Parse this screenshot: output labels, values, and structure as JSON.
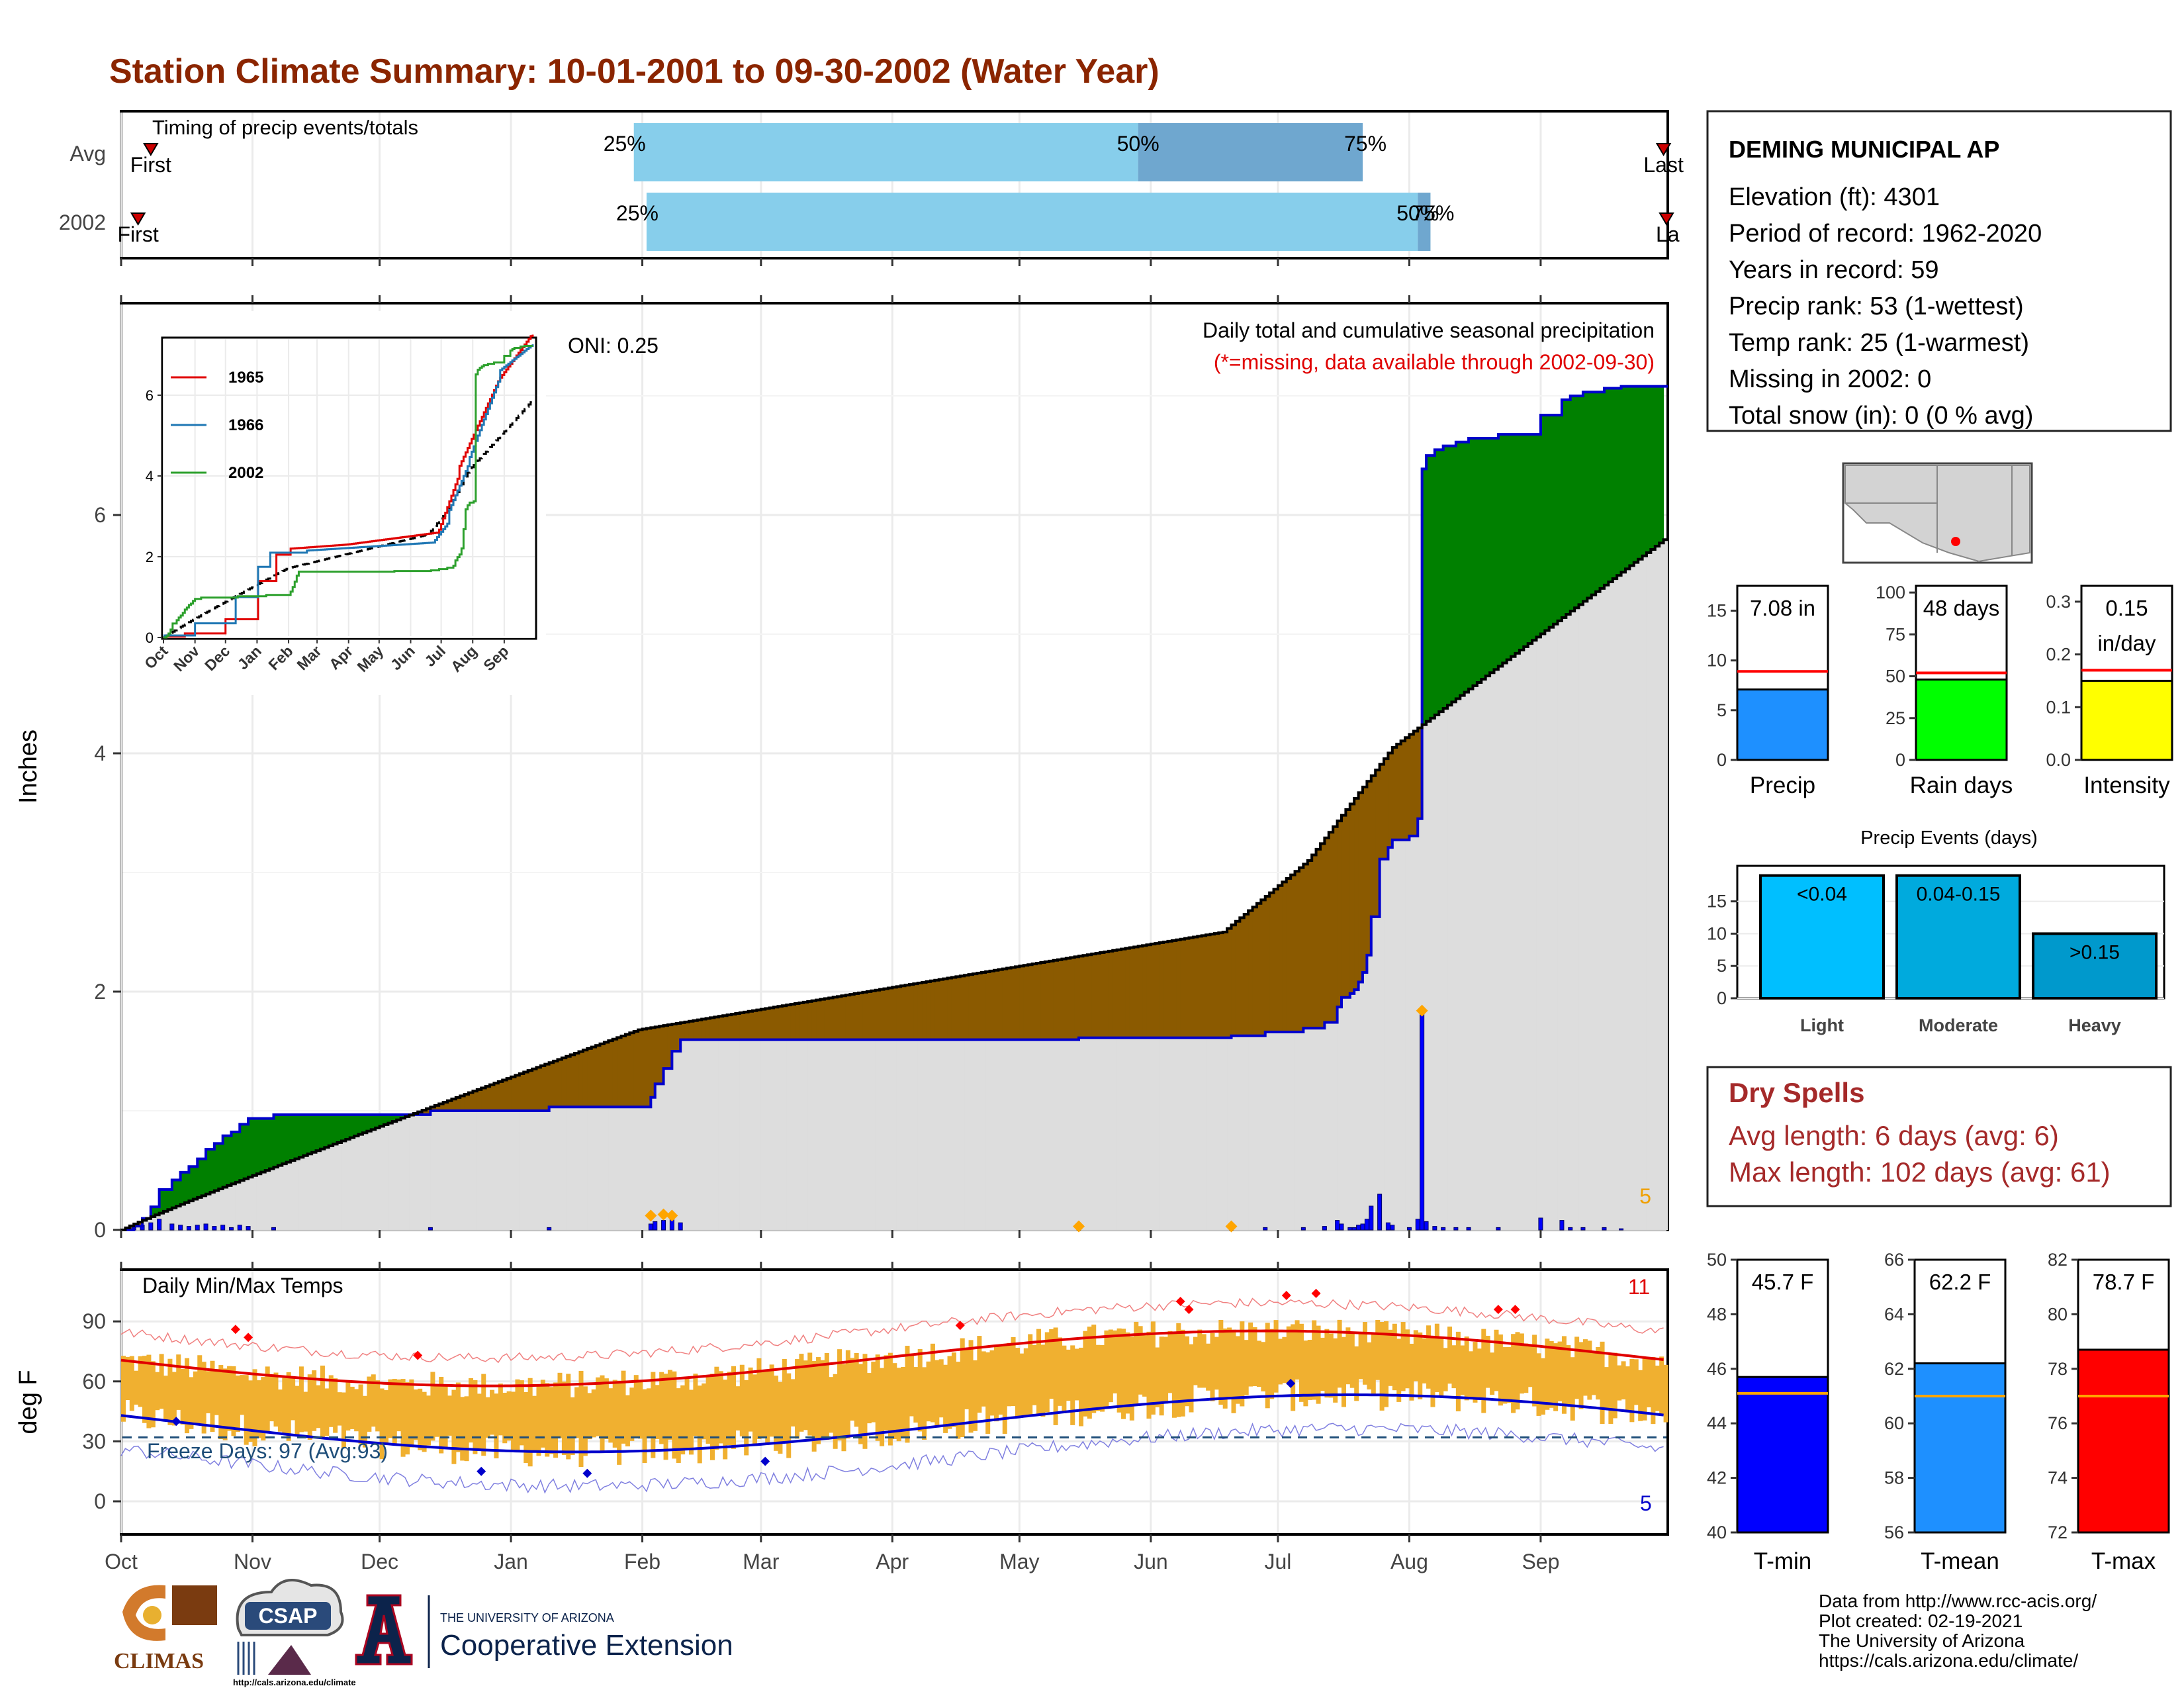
{
  "title": "Station Climate Summary: 10-01-2001 to 09-30-2002 (Water Year)",
  "colors": {
    "title": "#8B2500",
    "precip_bar": "#0000FF",
    "green": "#008000",
    "brown": "#8B5A00",
    "gray_fill": "#DDDDDD",
    "orange": "#F0B030",
    "tmax": "#E00000",
    "tmin": "#0000CC"
  },
  "timing": {
    "label": "Timing of precip events/totals",
    "rows": [
      {
        "name": "Avg",
        "first_label": "First",
        "last_label": "Last",
        "q25": "25%",
        "q50": "50%",
        "q75": "75%",
        "first_doy": 7,
        "p25_doy": 121,
        "p50_doy": 240,
        "p75_doy": 293,
        "last_doy": 364
      },
      {
        "name": "2002",
        "first_label": "First",
        "last_label": "La",
        "q25": "25%",
        "q50": "50%",
        "q75": "75%",
        "first_doy": 4,
        "p25_doy": 124,
        "p50_doy": 306,
        "p75_doy": 309,
        "last_doy": 367
      }
    ]
  },
  "main": {
    "ylabel": "Inches",
    "yticks": [
      "0",
      "2",
      "4",
      "6"
    ],
    "oni": "ONI: 0.25",
    "note1": "Daily total and cumulative seasonal precipitation",
    "note2": "(*=missing, data available through 2002-09-30)",
    "corner_value": "5"
  },
  "inset": {
    "legend": [
      "1965",
      "1966",
      "2002"
    ],
    "yticks": [
      "0",
      "2",
      "4",
      "6"
    ],
    "xticks": [
      "Oct",
      "Nov",
      "Dec",
      "Jan",
      "Feb",
      "Mar",
      "Apr",
      "May",
      "Jun",
      "Jul",
      "Aug",
      "Sep"
    ]
  },
  "temp": {
    "ylabel": "deg F",
    "title": "Daily Min/Max Temps",
    "yticks": [
      "0",
      "30",
      "60",
      "90"
    ],
    "freeze": "Freeze Days: 97 (Avg:93)",
    "max_count": "11",
    "min_count": "5"
  },
  "months": [
    "Oct",
    "Nov",
    "Dec",
    "Jan",
    "Feb",
    "Mar",
    "Apr",
    "May",
    "Jun",
    "Jul",
    "Aug",
    "Sep"
  ],
  "station": {
    "name": "DEMING MUNICIPAL AP",
    "lines": [
      "Elevation (ft): 4301",
      "Period of record: 1962-2020",
      "Years in record: 59",
      "Precip rank: 53 (1-wettest)",
      "Temp rank: 25 (1-warmest)",
      "Missing in 2002: 0",
      "Total snow (in): 0 (0 % avg)"
    ]
  },
  "gauges": [
    {
      "name": "Precip",
      "value_label": "7.08 in",
      "value": 7.08,
      "avg": 8.9,
      "max": 17.5,
      "ticks": [
        "0",
        "5",
        "10",
        "15"
      ],
      "tickvals": [
        0,
        5,
        10,
        15
      ],
      "color": "#1E90FF"
    },
    {
      "name": "Rain days",
      "value_label": "48 days",
      "value": 48,
      "avg": 52,
      "max": 104,
      "ticks": [
        "0",
        "25",
        "50",
        "75",
        "100"
      ],
      "tickvals": [
        0,
        25,
        50,
        75,
        100
      ],
      "color": "#00FF00"
    },
    {
      "name": "Intensity",
      "value_label": "0.15",
      "value_label2": "in/day",
      "value": 0.15,
      "avg": 0.17,
      "max": 0.33,
      "ticks": [
        "0.0",
        "0.1",
        "0.2",
        "0.3"
      ],
      "tickvals": [
        0,
        0.1,
        0.2,
        0.3
      ],
      "color": "#FFFF00"
    }
  ],
  "events": {
    "title": "Precip Events (days)",
    "categories": [
      "Light",
      "Moderate",
      "Heavy"
    ],
    "labels": [
      "<0.04",
      "0.04-0.15",
      ">0.15"
    ],
    "values": [
      19,
      19,
      10
    ],
    "yticks": [
      "0",
      "5",
      "10",
      "15"
    ],
    "colors": [
      "#00BFFF",
      "#00AADD",
      "#0099CC"
    ]
  },
  "dry_spells": {
    "title": "Dry Spells",
    "avg_line": "Avg length: 6 days (avg: 6)",
    "max_line": "Max length: 102 days (avg: 61)"
  },
  "temp_gauges": [
    {
      "name": "T-min",
      "value_label": "45.7 F",
      "value": 45.7,
      "avg": 45.1,
      "min": 40,
      "max": 50,
      "ticks": [
        "40",
        "42",
        "44",
        "46",
        "48",
        "50"
      ],
      "tickvals": [
        40,
        42,
        44,
        46,
        48,
        50
      ],
      "color": "#0000FF"
    },
    {
      "name": "T-mean",
      "value_label": "62.2 F",
      "value": 62.2,
      "avg": 61.0,
      "min": 56,
      "max": 66,
      "ticks": [
        "56",
        "58",
        "60",
        "62",
        "64",
        "66"
      ],
      "tickvals": [
        56,
        58,
        60,
        62,
        64,
        66
      ],
      "color": "#1E90FF"
    },
    {
      "name": "T-max",
      "value_label": "78.7 F",
      "value": 78.7,
      "avg": 77.0,
      "min": 72,
      "max": 82,
      "ticks": [
        "72",
        "74",
        "76",
        "78",
        "80",
        "82"
      ],
      "tickvals": [
        72,
        74,
        76,
        78,
        80,
        82
      ],
      "color": "#FF0000"
    }
  ],
  "footer": {
    "lines": [
      "Data from http://www.rcc-acis.org/",
      "Plot created: 02-19-2021",
      "The University of Arizona",
      "https://cals.arizona.edu/climate/"
    ]
  },
  "logos": {
    "climas": "CLIMAS",
    "csap": "CSAP",
    "csap_url": "http://cals.arizona.edu/climate",
    "ua_small": "THE UNIVERSITY OF ARIZONA",
    "ua_big": "Cooperative Extension"
  }
}
